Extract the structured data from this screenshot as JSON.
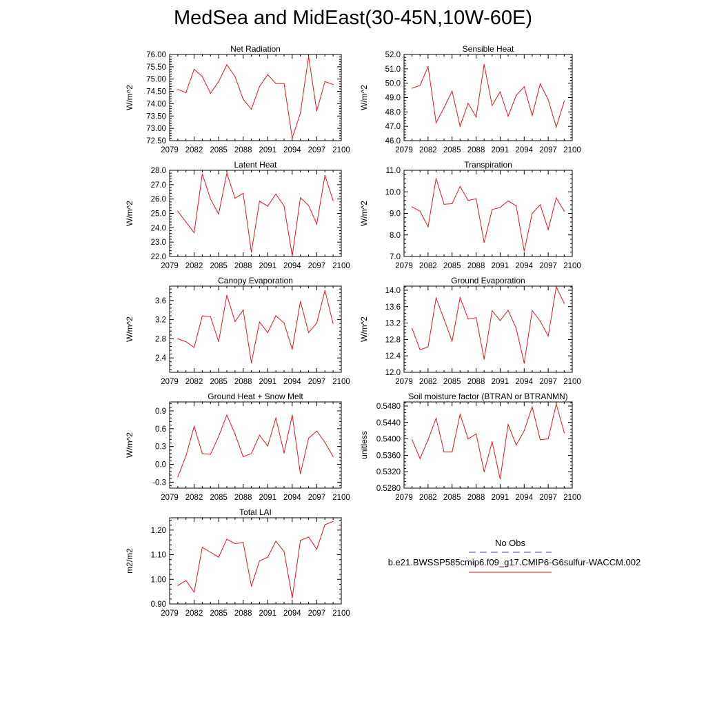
{
  "title": "MedSea and MidEast(30-45N,10W-60E)",
  "line_color": "#e8141a",
  "legend": {
    "obs_label": "No Obs",
    "obs_color": "#3c3ca0",
    "case_label": "b.e21.BWSSP585cmip6.f09_g17.CMIP6-G6sulfur-WACCM.002",
    "case_color": "#e8141a"
  },
  "chart_data": [
    {
      "type": "line",
      "title": "Net Radiation",
      "ylabel": "W/m^2",
      "xlim": [
        2079,
        2100
      ],
      "ylim": [
        72.5,
        76.0
      ],
      "xticks": [
        "2079",
        "2082",
        "2085",
        "2088",
        "2091",
        "2094",
        "2097",
        "2100"
      ],
      "yticks": [
        "72.50",
        "73.00",
        "73.50",
        "74.00",
        "74.50",
        "75.00",
        "75.50",
        "76.00"
      ],
      "x": [
        2080,
        2081,
        2082,
        2083,
        2084,
        2085,
        2086,
        2087,
        2088,
        2089,
        2090,
        2091,
        2092,
        2093,
        2094,
        2095,
        2096,
        2097,
        2098,
        2099
      ],
      "y": [
        74.58,
        74.45,
        75.4,
        75.1,
        74.42,
        74.9,
        75.58,
        75.1,
        74.18,
        73.78,
        74.7,
        75.18,
        74.82,
        74.82,
        72.6,
        73.62,
        75.92,
        73.7,
        74.9,
        74.78
      ]
    },
    {
      "type": "line",
      "title": "Sensible Heat",
      "ylabel": "W/m^2",
      "xlim": [
        2079,
        2100
      ],
      "ylim": [
        46.0,
        52.0
      ],
      "xticks": [
        "2079",
        "2082",
        "2085",
        "2088",
        "2091",
        "2094",
        "2097",
        "2100"
      ],
      "yticks": [
        "46.0",
        "47.0",
        "48.0",
        "49.0",
        "50.0",
        "51.0",
        "52.0"
      ],
      "x": [
        2080,
        2081,
        2082,
        2083,
        2084,
        2085,
        2086,
        2087,
        2088,
        2089,
        2090,
        2091,
        2092,
        2093,
        2094,
        2095,
        2096,
        2097,
        2098,
        2099
      ],
      "y": [
        49.65,
        49.85,
        51.15,
        47.25,
        48.3,
        49.45,
        47.0,
        48.6,
        47.65,
        51.3,
        48.45,
        49.4,
        47.7,
        49.15,
        49.75,
        47.75,
        49.95,
        48.85,
        46.95,
        48.75
      ]
    },
    {
      "type": "line",
      "title": "Latent Heat",
      "ylabel": "W/m^2",
      "xlim": [
        2079,
        2100
      ],
      "ylim": [
        22.0,
        28.0
      ],
      "xticks": [
        "2079",
        "2082",
        "2085",
        "2088",
        "2091",
        "2094",
        "2097",
        "2100"
      ],
      "yticks": [
        "22.0",
        "23.0",
        "24.0",
        "25.0",
        "26.0",
        "27.0",
        "28.0"
      ],
      "x": [
        2080,
        2081,
        2082,
        2083,
        2084,
        2085,
        2086,
        2087,
        2088,
        2089,
        2090,
        2091,
        2092,
        2093,
        2094,
        2095,
        2096,
        2097,
        2098,
        2099
      ],
      "y": [
        25.15,
        24.4,
        23.65,
        27.75,
        26.0,
        24.95,
        27.8,
        26.05,
        26.4,
        22.3,
        25.85,
        25.5,
        26.35,
        25.5,
        22.05,
        26.1,
        25.55,
        24.25,
        27.65,
        25.9
      ]
    },
    {
      "type": "line",
      "title": "Transpiration",
      "ylabel": "W/m^2",
      "xlim": [
        2079,
        2100
      ],
      "ylim": [
        7.0,
        11.0
      ],
      "xticks": [
        "2079",
        "2082",
        "2085",
        "2088",
        "2091",
        "2094",
        "2097",
        "2100"
      ],
      "yticks": [
        "7.0",
        "8.0",
        "9.0",
        "10.0",
        "11.0"
      ],
      "x": [
        2080,
        2081,
        2082,
        2083,
        2084,
        2085,
        2086,
        2087,
        2088,
        2089,
        2090,
        2091,
        2092,
        2093,
        2094,
        2095,
        2096,
        2097,
        2098,
        2099
      ],
      "y": [
        9.3,
        9.1,
        8.38,
        10.62,
        9.42,
        9.45,
        10.25,
        9.6,
        9.68,
        7.65,
        9.18,
        9.28,
        9.58,
        9.35,
        7.25,
        9.0,
        9.4,
        8.25,
        9.72,
        9.1
      ]
    },
    {
      "type": "line",
      "title": "Canopy Evaporation",
      "ylabel": "W/m^2",
      "xlim": [
        2079,
        2100
      ],
      "ylim": [
        2.1,
        3.9
      ],
      "xticks": [
        "2079",
        "2082",
        "2085",
        "2088",
        "2091",
        "2094",
        "2097",
        "2100"
      ],
      "yticks": [
        "2.4",
        "2.8",
        "3.2",
        "3.6"
      ],
      "ytick_values": [
        2.4,
        2.8,
        3.2,
        3.6
      ],
      "x": [
        2080,
        2081,
        2082,
        2083,
        2084,
        2085,
        2086,
        2087,
        2088,
        2089,
        2090,
        2091,
        2092,
        2093,
        2094,
        2095,
        2096,
        2097,
        2098,
        2099
      ],
      "y": [
        2.8,
        2.74,
        2.62,
        3.28,
        3.26,
        2.74,
        3.71,
        3.16,
        3.4,
        2.3,
        3.15,
        2.93,
        3.28,
        3.13,
        2.58,
        3.58,
        2.93,
        3.13,
        3.81,
        3.12
      ]
    },
    {
      "type": "line",
      "title": "Ground Evaporation",
      "ylabel": "W/m^2",
      "xlim": [
        2079,
        2100
      ],
      "ylim": [
        12.0,
        14.1
      ],
      "xticks": [
        "2079",
        "2082",
        "2085",
        "2088",
        "2091",
        "2094",
        "2097",
        "2100"
      ],
      "yticks": [
        "12.0",
        "12.4",
        "12.8",
        "13.2",
        "13.6",
        "14.0"
      ],
      "ytick_values": [
        12.0,
        12.4,
        12.8,
        13.2,
        13.6,
        14.0
      ],
      "x": [
        2080,
        2081,
        2082,
        2083,
        2084,
        2085,
        2086,
        2087,
        2088,
        2089,
        2090,
        2091,
        2092,
        2093,
        2094,
        2095,
        2096,
        2097,
        2098,
        2099
      ],
      "y": [
        13.07,
        12.55,
        12.62,
        13.81,
        13.29,
        12.76,
        13.82,
        13.3,
        13.33,
        12.32,
        13.5,
        13.26,
        13.51,
        13.07,
        12.22,
        13.5,
        13.25,
        12.88,
        14.08,
        13.68
      ]
    },
    {
      "type": "line",
      "title": "Ground Heat + Snow Melt",
      "ylabel": "W/m^2",
      "xlim": [
        2079,
        2100
      ],
      "ylim": [
        -0.4,
        1.05
      ],
      "xticks": [
        "2079",
        "2082",
        "2085",
        "2088",
        "2091",
        "2094",
        "2097",
        "2100"
      ],
      "yticks": [
        "-0.3",
        "0.0",
        "0.3",
        "0.6",
        "0.9"
      ],
      "ytick_values": [
        -0.3,
        0.0,
        0.3,
        0.6,
        0.9
      ],
      "x": [
        2080,
        2081,
        2082,
        2083,
        2084,
        2085,
        2086,
        2087,
        2088,
        2089,
        2090,
        2091,
        2092,
        2093,
        2094,
        2095,
        2096,
        2097,
        2098,
        2099
      ],
      "y": [
        -0.21,
        0.14,
        0.64,
        0.18,
        0.17,
        0.47,
        0.83,
        0.51,
        0.13,
        0.18,
        0.49,
        0.31,
        0.78,
        0.19,
        0.83,
        -0.16,
        0.44,
        0.56,
        0.37,
        0.13
      ]
    },
    {
      "type": "line",
      "title": "Soil moisture factor (BTRAN or BTRANMN)",
      "ylabel": "unitless",
      "xlim": [
        2079,
        2100
      ],
      "ylim": [
        0.528,
        0.549
      ],
      "xticks": [
        "2079",
        "2082",
        "2085",
        "2088",
        "2091",
        "2094",
        "2097",
        "2100"
      ],
      "yticks": [
        "0.5280",
        "0.5320",
        "0.5360",
        "0.5400",
        "0.5440",
        "0.5480"
      ],
      "ytick_values": [
        0.528,
        0.532,
        0.536,
        0.54,
        0.544,
        0.548
      ],
      "x": [
        2080,
        2081,
        2082,
        2083,
        2084,
        2085,
        2086,
        2087,
        2088,
        2089,
        2090,
        2091,
        2092,
        2093,
        2094,
        2095,
        2096,
        2097,
        2098,
        2099
      ],
      "y": [
        0.5398,
        0.5352,
        0.5398,
        0.545,
        0.5368,
        0.5368,
        0.546,
        0.54,
        0.5412,
        0.532,
        0.5393,
        0.5302,
        0.5435,
        0.5385,
        0.542,
        0.5478,
        0.5398,
        0.54,
        0.5485,
        0.5415
      ]
    },
    {
      "type": "line",
      "title": "Total LAI",
      "ylabel": "m2/m2",
      "xlim": [
        2079,
        2100
      ],
      "ylim": [
        0.9,
        1.25
      ],
      "xticks": [
        "2079",
        "2082",
        "2085",
        "2088",
        "2091",
        "2094",
        "2097",
        "2100"
      ],
      "yticks": [
        "0.90",
        "1.00",
        "1.10",
        "1.20"
      ],
      "ytick_values": [
        0.9,
        1.0,
        1.1,
        1.2
      ],
      "x": [
        2080,
        2081,
        2082,
        2083,
        2084,
        2085,
        2086,
        2087,
        2088,
        2089,
        2090,
        2091,
        2092,
        2093,
        2094,
        2095,
        2096,
        2097,
        2098,
        2099
      ],
      "y": [
        0.975,
        0.995,
        0.948,
        1.13,
        1.11,
        1.09,
        1.163,
        1.145,
        1.15,
        0.972,
        1.075,
        1.09,
        1.155,
        1.113,
        0.925,
        1.158,
        1.172,
        1.122,
        1.222,
        1.235
      ]
    }
  ]
}
